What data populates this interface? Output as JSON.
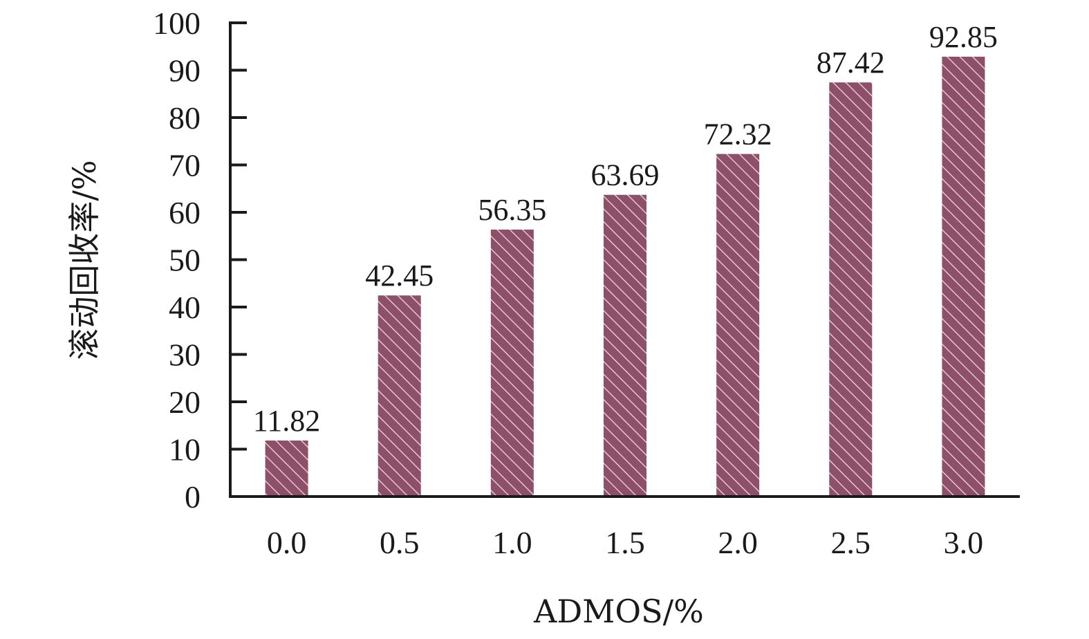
{
  "chart_data": {
    "type": "bar",
    "categories": [
      "0.0",
      "0.5",
      "1.0",
      "1.5",
      "2.0",
      "2.5",
      "3.0"
    ],
    "values": [
      11.82,
      42.45,
      56.35,
      63.69,
      72.32,
      87.42,
      92.85
    ],
    "data_labels": [
      "11.82",
      "42.45",
      "56.35",
      "63.69",
      "72.32",
      "87.42",
      "92.85"
    ],
    "xlabel": "ADMOS/%",
    "ylabel": "滚动回收率/%",
    "ylim": [
      0,
      100
    ],
    "yticks": [
      "0",
      "10",
      "20",
      "30",
      "40",
      "50",
      "60",
      "70",
      "80",
      "90",
      "100"
    ],
    "grid": false,
    "legend": "none",
    "bar_fill": "#8e5068",
    "hatch_color": "#f2dde4"
  }
}
